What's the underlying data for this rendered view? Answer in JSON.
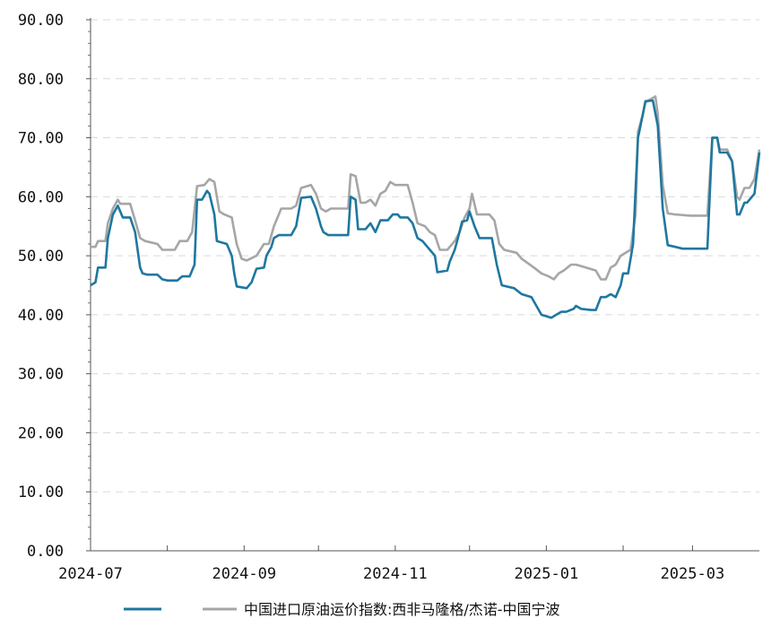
{
  "chart_data": {
    "type": "line",
    "title": "",
    "xlabel": "",
    "ylabel": "",
    "ylim": [
      0,
      90
    ],
    "y_ticks": [
      "0.00",
      "10.00",
      "20.00",
      "30.00",
      "40.00",
      "50.00",
      "60.00",
      "70.00",
      "80.00",
      "90.00"
    ],
    "x_ticks": [
      "2024-07",
      "2024-09",
      "2024-11",
      "2025-01",
      "2025-03"
    ],
    "x_range": [
      "2024-07-01",
      "2025-03-28"
    ],
    "grid": "horizontal dashed",
    "legend_position": "bottom",
    "series": [
      {
        "name": "",
        "color": "#1f77a0",
        "points": [
          [
            "2024-07-01",
            45.0
          ],
          [
            "2024-07-03",
            45.5
          ],
          [
            "2024-07-04",
            48.0
          ],
          [
            "2024-07-07",
            48.0
          ],
          [
            "2024-07-08",
            53.0
          ],
          [
            "2024-07-10",
            57.0
          ],
          [
            "2024-07-12",
            58.5
          ],
          [
            "2024-07-14",
            56.5
          ],
          [
            "2024-07-17",
            56.5
          ],
          [
            "2024-07-19",
            54.0
          ],
          [
            "2024-07-21",
            48.0
          ],
          [
            "2024-07-22",
            47.0
          ],
          [
            "2024-07-24",
            46.8
          ],
          [
            "2024-07-28",
            46.8
          ],
          [
            "2024-07-30",
            46.0
          ],
          [
            "2024-08-01",
            45.8
          ],
          [
            "2024-08-05",
            45.8
          ],
          [
            "2024-08-07",
            46.5
          ],
          [
            "2024-08-10",
            46.5
          ],
          [
            "2024-08-12",
            48.5
          ],
          [
            "2024-08-13",
            59.5
          ],
          [
            "2024-08-15",
            59.5
          ],
          [
            "2024-08-17",
            61.0
          ],
          [
            "2024-08-18",
            60.5
          ],
          [
            "2024-08-20",
            57.0
          ],
          [
            "2024-08-21",
            52.5
          ],
          [
            "2024-08-25",
            52.0
          ],
          [
            "2024-08-27",
            50.0
          ],
          [
            "2024-08-28",
            47.0
          ],
          [
            "2024-08-29",
            44.8
          ],
          [
            "2024-09-02",
            44.5
          ],
          [
            "2024-09-04",
            45.5
          ],
          [
            "2024-09-06",
            47.8
          ],
          [
            "2024-09-09",
            48.0
          ],
          [
            "2024-09-10",
            50.0
          ],
          [
            "2024-09-12",
            51.5
          ],
          [
            "2024-09-13",
            53.0
          ],
          [
            "2024-09-15",
            53.5
          ],
          [
            "2024-09-20",
            53.5
          ],
          [
            "2024-09-22",
            55.0
          ],
          [
            "2024-09-24",
            59.8
          ],
          [
            "2024-09-28",
            60.0
          ],
          [
            "2024-09-30",
            58.0
          ],
          [
            "2024-10-02",
            55.0
          ],
          [
            "2024-10-03",
            54.0
          ],
          [
            "2024-10-05",
            53.5
          ],
          [
            "2024-10-12",
            53.5
          ],
          [
            "2024-10-13",
            53.5
          ],
          [
            "2024-10-14",
            60.0
          ],
          [
            "2024-10-16",
            59.5
          ],
          [
            "2024-10-17",
            54.5
          ],
          [
            "2024-10-20",
            54.5
          ],
          [
            "2024-10-22",
            55.5
          ],
          [
            "2024-10-24",
            54.0
          ],
          [
            "2024-10-26",
            56.0
          ],
          [
            "2024-10-29",
            56.0
          ],
          [
            "2024-10-31",
            57.0
          ],
          [
            "2024-11-02",
            57.0
          ],
          [
            "2024-11-03",
            56.5
          ],
          [
            "2024-11-06",
            56.5
          ],
          [
            "2024-11-08",
            55.5
          ],
          [
            "2024-11-10",
            53.0
          ],
          [
            "2024-11-12",
            52.5
          ],
          [
            "2024-11-15",
            51.0
          ],
          [
            "2024-11-17",
            50.0
          ],
          [
            "2024-11-18",
            47.2
          ],
          [
            "2024-11-22",
            47.5
          ],
          [
            "2024-11-23",
            49.0
          ],
          [
            "2024-11-25",
            51.0
          ],
          [
            "2024-11-26",
            52.5
          ],
          [
            "2024-11-28",
            55.8
          ],
          [
            "2024-11-30",
            56.0
          ],
          [
            "2024-12-01",
            57.5
          ],
          [
            "2024-12-03",
            55.0
          ],
          [
            "2024-12-05",
            53.0
          ],
          [
            "2024-12-10",
            53.0
          ],
          [
            "2024-12-12",
            48.5
          ],
          [
            "2024-12-14",
            45.0
          ],
          [
            "2024-12-19",
            44.5
          ],
          [
            "2024-12-22",
            43.5
          ],
          [
            "2024-12-26",
            43.0
          ],
          [
            "2024-12-28",
            41.5
          ],
          [
            "2024-12-30",
            40.0
          ],
          [
            "2025-01-03",
            39.5
          ],
          [
            "2025-01-05",
            40.0
          ],
          [
            "2025-01-07",
            40.5
          ],
          [
            "2025-01-09",
            40.5
          ],
          [
            "2025-01-12",
            41.0
          ],
          [
            "2025-01-13",
            41.5
          ],
          [
            "2025-01-15",
            41.0
          ],
          [
            "2025-01-19",
            40.8
          ],
          [
            "2025-01-21",
            40.8
          ],
          [
            "2025-01-23",
            43.0
          ],
          [
            "2025-01-25",
            43.0
          ],
          [
            "2025-01-27",
            43.5
          ],
          [
            "2025-01-29",
            43.0
          ],
          [
            "2025-01-31",
            45.0
          ],
          [
            "2025-02-01",
            47.0
          ],
          [
            "2025-02-03",
            47.0
          ],
          [
            "2025-02-05",
            52.0
          ],
          [
            "2025-02-07",
            70.0
          ],
          [
            "2025-02-08",
            72.0
          ],
          [
            "2025-02-10",
            76.2
          ],
          [
            "2025-02-13",
            76.3
          ],
          [
            "2025-02-15",
            72.0
          ],
          [
            "2025-02-17",
            58.0
          ],
          [
            "2025-02-19",
            51.8
          ],
          [
            "2025-02-22",
            51.5
          ],
          [
            "2025-02-25",
            51.2
          ],
          [
            "2025-03-01",
            51.2
          ],
          [
            "2025-03-07",
            51.2
          ],
          [
            "2025-03-09",
            70.0
          ],
          [
            "2025-03-11",
            70.0
          ],
          [
            "2025-03-12",
            67.5
          ],
          [
            "2025-03-15",
            67.5
          ],
          [
            "2025-03-17",
            66.0
          ],
          [
            "2025-03-19",
            57.0
          ],
          [
            "2025-03-20",
            57.0
          ],
          [
            "2025-03-22",
            59.0
          ],
          [
            "2025-03-23",
            59.0
          ],
          [
            "2025-03-26",
            60.5
          ],
          [
            "2025-03-28",
            67.5
          ]
        ]
      },
      {
        "name": "中国进口原油运价指数:西非马隆格/杰诺-中国宁波",
        "color": "#a6a6a6",
        "points": [
          [
            "2024-07-01",
            51.5
          ],
          [
            "2024-07-03",
            51.5
          ],
          [
            "2024-07-04",
            52.5
          ],
          [
            "2024-07-07",
            52.5
          ],
          [
            "2024-07-08",
            55.5
          ],
          [
            "2024-07-10",
            58.0
          ],
          [
            "2024-07-12",
            59.5
          ],
          [
            "2024-07-13",
            58.8
          ],
          [
            "2024-07-17",
            58.8
          ],
          [
            "2024-07-19",
            56.0
          ],
          [
            "2024-07-21",
            53.0
          ],
          [
            "2024-07-23",
            52.5
          ],
          [
            "2024-07-28",
            52.0
          ],
          [
            "2024-07-30",
            51.0
          ],
          [
            "2024-08-01",
            51.0
          ],
          [
            "2024-08-04",
            51.0
          ],
          [
            "2024-08-06",
            52.5
          ],
          [
            "2024-08-09",
            52.5
          ],
          [
            "2024-08-11",
            54.0
          ],
          [
            "2024-08-13",
            61.8
          ],
          [
            "2024-08-16",
            62.0
          ],
          [
            "2024-08-18",
            63.0
          ],
          [
            "2024-08-20",
            62.5
          ],
          [
            "2024-08-22",
            57.5
          ],
          [
            "2024-08-24",
            57.0
          ],
          [
            "2024-08-27",
            56.5
          ],
          [
            "2024-08-29",
            52.0
          ],
          [
            "2024-08-31",
            49.5
          ],
          [
            "2024-09-02",
            49.2
          ],
          [
            "2024-09-06",
            50.0
          ],
          [
            "2024-09-09",
            52.0
          ],
          [
            "2024-09-11",
            52.0
          ],
          [
            "2024-09-13",
            55.0
          ],
          [
            "2024-09-16",
            58.0
          ],
          [
            "2024-09-20",
            58.0
          ],
          [
            "2024-09-22",
            58.5
          ],
          [
            "2024-09-24",
            61.5
          ],
          [
            "2024-09-28",
            62.0
          ],
          [
            "2024-09-30",
            60.5
          ],
          [
            "2024-10-02",
            58.0
          ],
          [
            "2024-10-04",
            57.5
          ],
          [
            "2024-10-06",
            58.0
          ],
          [
            "2024-10-12",
            58.0
          ],
          [
            "2024-10-13",
            58.0
          ],
          [
            "2024-10-14",
            63.8
          ],
          [
            "2024-10-16",
            63.5
          ],
          [
            "2024-10-18",
            59.0
          ],
          [
            "2024-10-20",
            59.0
          ],
          [
            "2024-10-22",
            59.5
          ],
          [
            "2024-10-24",
            58.5
          ],
          [
            "2024-10-26",
            60.5
          ],
          [
            "2024-10-28",
            61.0
          ],
          [
            "2024-10-30",
            62.5
          ],
          [
            "2024-11-01",
            62.0
          ],
          [
            "2024-11-06",
            62.0
          ],
          [
            "2024-11-08",
            59.0
          ],
          [
            "2024-11-10",
            55.5
          ],
          [
            "2024-11-13",
            55.0
          ],
          [
            "2024-11-15",
            54.0
          ],
          [
            "2024-11-17",
            53.5
          ],
          [
            "2024-11-19",
            51.0
          ],
          [
            "2024-11-22",
            51.0
          ],
          [
            "2024-11-25",
            52.5
          ],
          [
            "2024-11-27",
            54.0
          ],
          [
            "2024-11-29",
            56.5
          ],
          [
            "2024-12-01",
            58.0
          ],
          [
            "2024-12-02",
            60.5
          ],
          [
            "2024-12-04",
            57.0
          ],
          [
            "2024-12-09",
            57.0
          ],
          [
            "2024-12-11",
            56.0
          ],
          [
            "2024-12-13",
            52.0
          ],
          [
            "2024-12-15",
            51.0
          ],
          [
            "2024-12-20",
            50.5
          ],
          [
            "2024-12-22",
            49.5
          ],
          [
            "2024-12-27",
            48.0
          ],
          [
            "2024-12-30",
            47.0
          ],
          [
            "2025-01-02",
            46.5
          ],
          [
            "2025-01-04",
            46.0
          ],
          [
            "2025-01-06",
            47.0
          ],
          [
            "2025-01-08",
            47.5
          ],
          [
            "2025-01-11",
            48.5
          ],
          [
            "2025-01-13",
            48.5
          ],
          [
            "2025-01-17",
            48.0
          ],
          [
            "2025-01-21",
            47.5
          ],
          [
            "2025-01-23",
            46.0
          ],
          [
            "2025-01-25",
            46.0
          ],
          [
            "2025-01-27",
            48.0
          ],
          [
            "2025-01-29",
            48.5
          ],
          [
            "2025-01-31",
            50.0
          ],
          [
            "2025-02-02",
            50.5
          ],
          [
            "2025-02-04",
            51.0
          ],
          [
            "2025-02-06",
            57.0
          ],
          [
            "2025-02-07",
            71.0
          ],
          [
            "2025-02-09",
            74.0
          ],
          [
            "2025-02-10",
            76.0
          ],
          [
            "2025-02-12",
            76.5
          ],
          [
            "2025-02-14",
            77.0
          ],
          [
            "2025-02-15",
            74.0
          ],
          [
            "2025-02-17",
            62.0
          ],
          [
            "2025-02-19",
            57.2
          ],
          [
            "2025-02-22",
            57.0
          ],
          [
            "2025-02-28",
            56.8
          ],
          [
            "2025-03-07",
            56.8
          ],
          [
            "2025-03-09",
            70.0
          ],
          [
            "2025-03-11",
            70.0
          ],
          [
            "2025-03-12",
            68.0
          ],
          [
            "2025-03-15",
            68.0
          ],
          [
            "2025-03-17",
            66.0
          ],
          [
            "2025-03-19",
            60.0
          ],
          [
            "2025-03-20",
            59.5
          ],
          [
            "2025-03-22",
            61.5
          ],
          [
            "2025-03-24",
            61.5
          ],
          [
            "2025-03-26",
            63.0
          ],
          [
            "2025-03-28",
            68.0
          ]
        ]
      }
    ]
  }
}
